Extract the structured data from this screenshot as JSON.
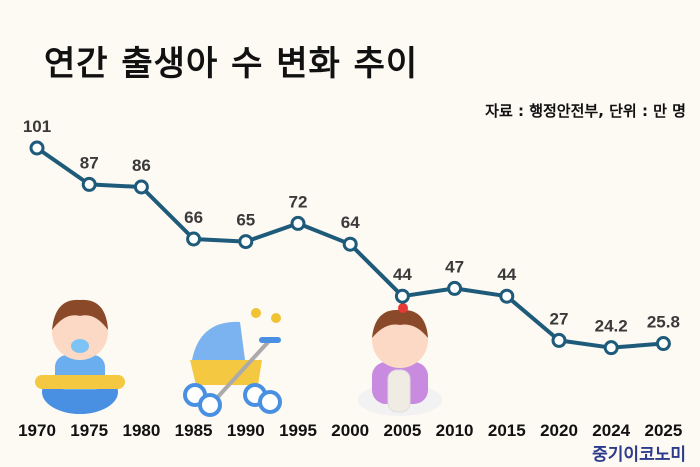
{
  "chart_data": {
    "type": "line",
    "title": "연간 출생아 수 변화 추이",
    "source_note": "자료 : 행정안전부, 단위 : 만 명",
    "categories": [
      "1970",
      "1975",
      "1980",
      "1985",
      "1990",
      "1995",
      "2000",
      "2005",
      "2010",
      "2015",
      "2020",
      "2024",
      "2025"
    ],
    "value_labels": [
      "101",
      "87",
      "86",
      "66",
      "65",
      "72",
      "64",
      "44",
      "47",
      "44",
      "27",
      "24.2",
      "25.8"
    ],
    "values": [
      101,
      87,
      86,
      66,
      65,
      72,
      64,
      44,
      47,
      44,
      27,
      24.2,
      25.8
    ],
    "xlabel": "",
    "ylabel": "",
    "ylim": [
      24,
      101
    ],
    "grid": false,
    "line_color": "#1e5a7a"
  },
  "brand": "중기이코노미"
}
